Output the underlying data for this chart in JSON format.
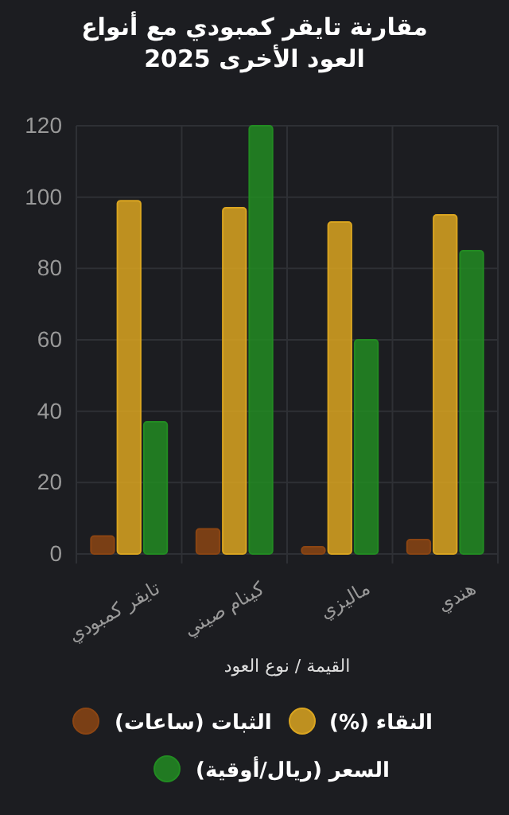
{
  "chart_data": {
    "type": "bar",
    "title": "مقارنة تايقر كمبودي مع أنواع العود الأخرى 2025",
    "xlabel": "القيمة / نوع العود",
    "categories": [
      "تايقر كمبودي",
      "كينام صيني",
      "ماليزي",
      "هندي"
    ],
    "series": [
      {
        "name": "الثبات (ساعات)",
        "color": "#8b4513",
        "values": [
          5,
          7,
          2,
          4
        ]
      },
      {
        "name": "النقاء (%)",
        "color": "#daa520",
        "values": [
          99,
          97,
          93,
          95
        ]
      },
      {
        "name": "السعر (ريال/أوقية)",
        "color": "#228b22",
        "values": [
          37,
          120,
          60,
          85
        ]
      }
    ],
    "ylim": [
      0,
      120
    ],
    "yticks": [
      0,
      20,
      40,
      60,
      80,
      100,
      120
    ],
    "grid": true,
    "legend": "bottom"
  }
}
